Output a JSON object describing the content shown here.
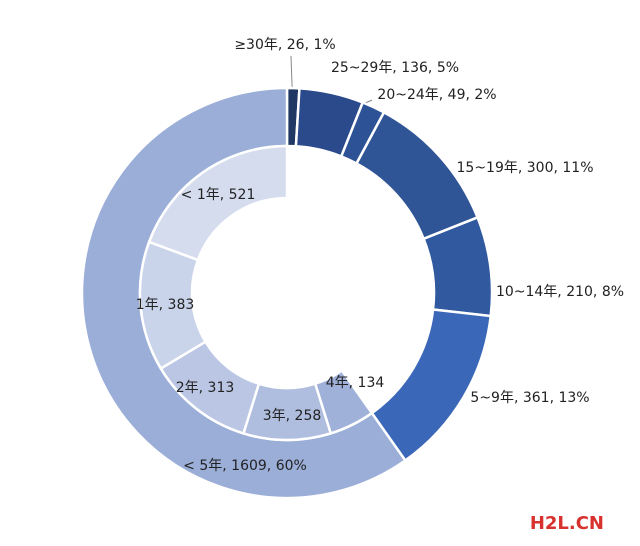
{
  "chart_data": {
    "type": "nested-donut",
    "series": [
      {
        "values": [
          26,
          136,
          49,
          300,
          210,
          361,
          1609
        ],
        "value_labels": [
          "≥30年, 26, 1%",
          "25~29年, 136, 5%",
          "20~24年, 49, 2%",
          "15~19年, 300, 11%",
          "10~14年, 210, 8%",
          "5~9年, 361, 13%",
          "< 5年, 1609, 60%"
        ],
        "colors": [
          "#1f3864",
          "#2a4a8c",
          "#2d5396",
          "#2f5597",
          "#30599f",
          "#3b67b8",
          "#9baed8"
        ]
      },
      {
        "values": [
          521,
          383,
          313,
          258,
          134
        ],
        "value_labels": [
          "< 1年, 521",
          "1年, 383",
          "2年, 313",
          "3年, 258",
          "4年, 134"
        ],
        "colors": [
          "#d4dcee",
          "#c9d3ea",
          "#bac6e3",
          "#afbddf",
          "#9fb0d9"
        ]
      }
    ],
    "watermark": "H2L.CN"
  }
}
